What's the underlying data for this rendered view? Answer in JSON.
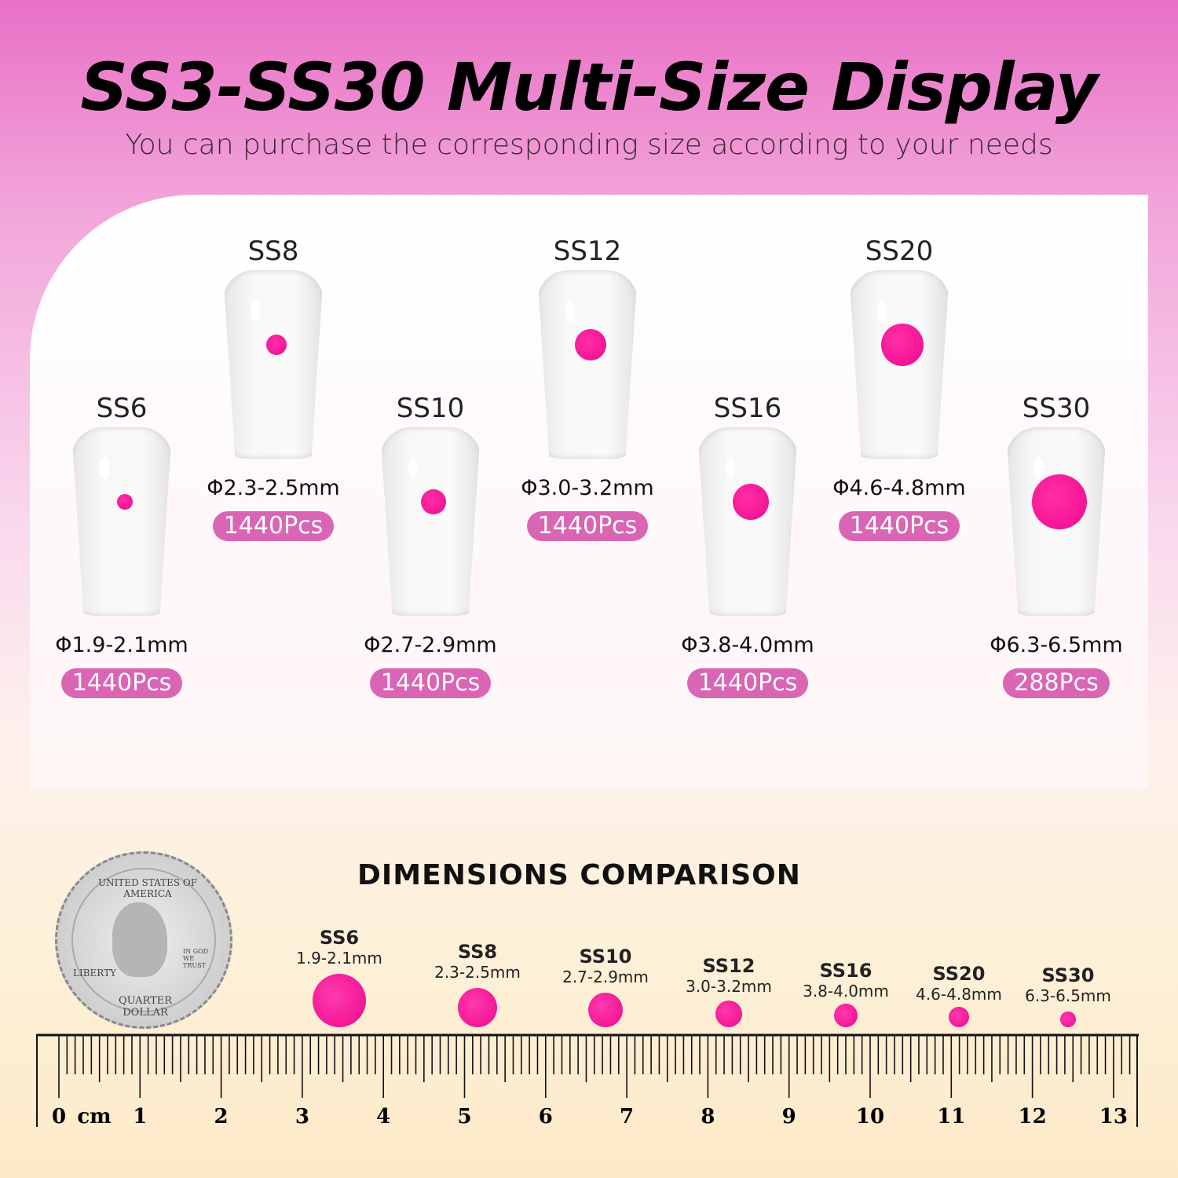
{
  "title": "SS3-SS30 Multi-Size Display",
  "subtitle": "You can purchase the corresponding size according to your needs",
  "accent": "#d965b4",
  "dot_color": "#f0098e",
  "sizes": [
    {
      "name": "SS6",
      "diameter": "Φ1.9-2.1mm",
      "count": "1440Pcs",
      "mm": "1.9-2.1mm"
    },
    {
      "name": "SS8",
      "diameter": "Φ2.3-2.5mm",
      "count": "1440Pcs",
      "mm": "2.3-2.5mm"
    },
    {
      "name": "SS10",
      "diameter": "Φ2.7-2.9mm",
      "count": "1440Pcs",
      "mm": "2.7-2.9mm"
    },
    {
      "name": "SS12",
      "diameter": "Φ3.0-3.2mm",
      "count": "1440Pcs",
      "mm": "3.0-3.2mm"
    },
    {
      "name": "SS16",
      "diameter": "Φ3.8-4.0mm",
      "count": "1440Pcs",
      "mm": "3.8-4.0mm"
    },
    {
      "name": "SS20",
      "diameter": "Φ4.6-4.8mm",
      "count": "1440Pcs",
      "mm": "4.6-4.8mm"
    },
    {
      "name": "SS30",
      "diameter": "Φ6.3-6.5mm",
      "count": "288Pcs",
      "mm": "6.3-6.5mm"
    }
  ],
  "comparison": {
    "title": "DIMENSIONS COMPARISON"
  },
  "coin": {
    "top": "UNITED STATES OF AMERICA",
    "left": "LIBERTY",
    "motto": "IN GOD WE TRUST",
    "bottom": "QUARTER DOLLAR"
  },
  "ruler": {
    "unit": "cm",
    "labels": [
      "0",
      "1",
      "2",
      "3",
      "4",
      "5",
      "6",
      "7",
      "8",
      "9",
      "10",
      "11",
      "12",
      "13"
    ]
  }
}
